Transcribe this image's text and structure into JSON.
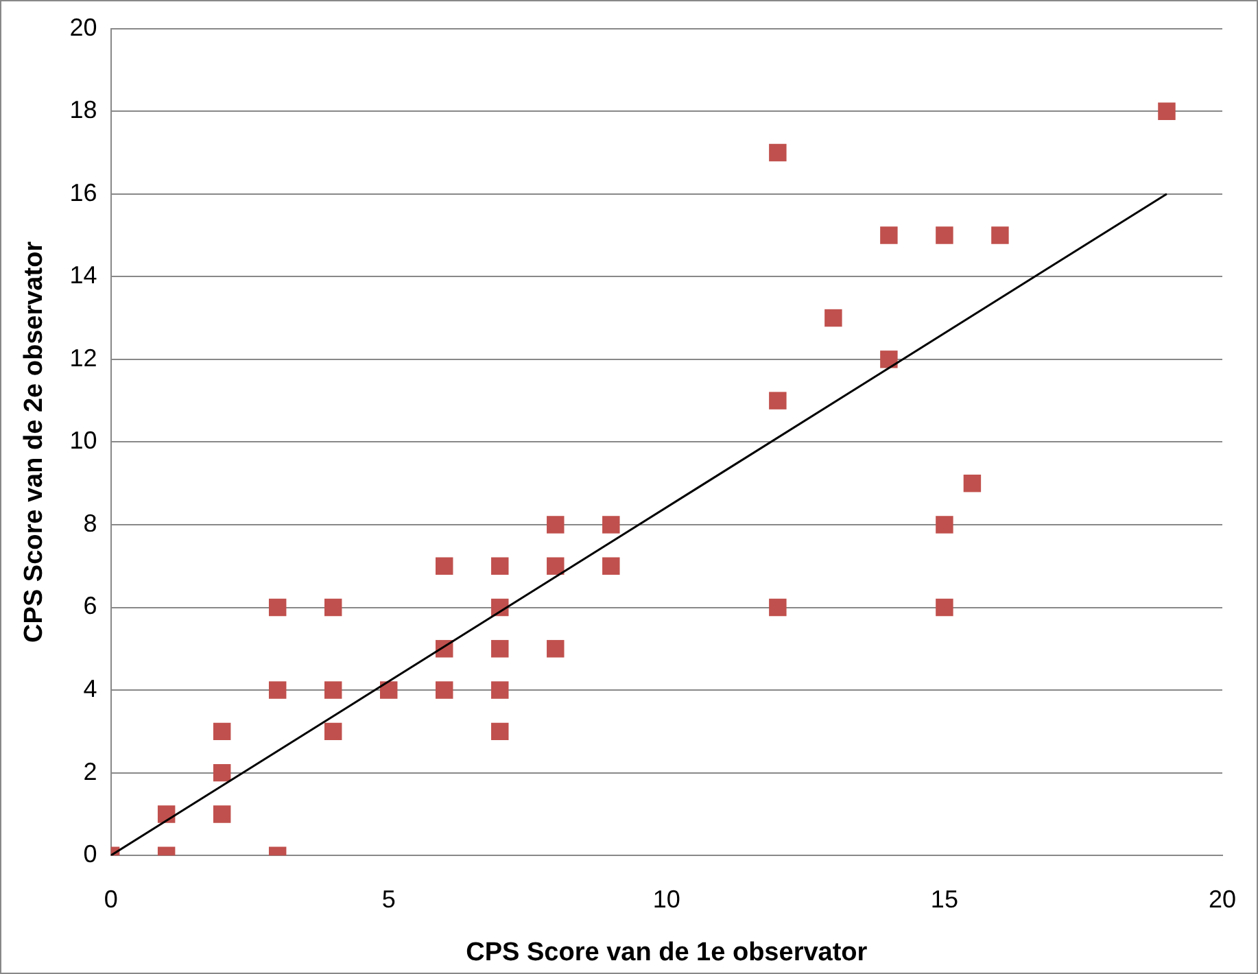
{
  "chart_data": {
    "type": "scatter",
    "xlabel": "CPS Score van de 1e observator",
    "ylabel": "CPS Score van de 2e observator",
    "xlim": [
      0,
      20
    ],
    "xticks": [
      0,
      5,
      10,
      15,
      20
    ],
    "ylim": [
      0,
      20
    ],
    "yticks": [
      0,
      2,
      4,
      6,
      8,
      10,
      12,
      14,
      16,
      18,
      20
    ],
    "grid": "y",
    "legend": false,
    "series": [
      {
        "type": "scatter",
        "marker": "square",
        "color": "#c0504d",
        "x": [
          0,
          1,
          1,
          2,
          2,
          2,
          3,
          3,
          3,
          4,
          4,
          4,
          5,
          6,
          6,
          6,
          7,
          7,
          7,
          7,
          7,
          8,
          8,
          8,
          9,
          9,
          12,
          12,
          12,
          13,
          14,
          14,
          15,
          15,
          15,
          16,
          15.5,
          19
        ],
        "values": [
          0,
          1,
          0,
          3,
          2,
          1,
          6,
          4,
          0,
          6,
          4,
          3,
          4,
          7,
          5,
          4,
          7,
          6,
          5,
          4,
          3,
          8,
          7,
          5,
          8,
          7,
          17,
          11,
          6,
          13,
          15,
          12,
          15,
          8,
          6,
          15,
          9,
          18
        ]
      },
      {
        "type": "line",
        "marker": "none",
        "color": "#000000",
        "x": [
          0,
          19
        ],
        "values": [
          0,
          16
        ]
      }
    ]
  }
}
